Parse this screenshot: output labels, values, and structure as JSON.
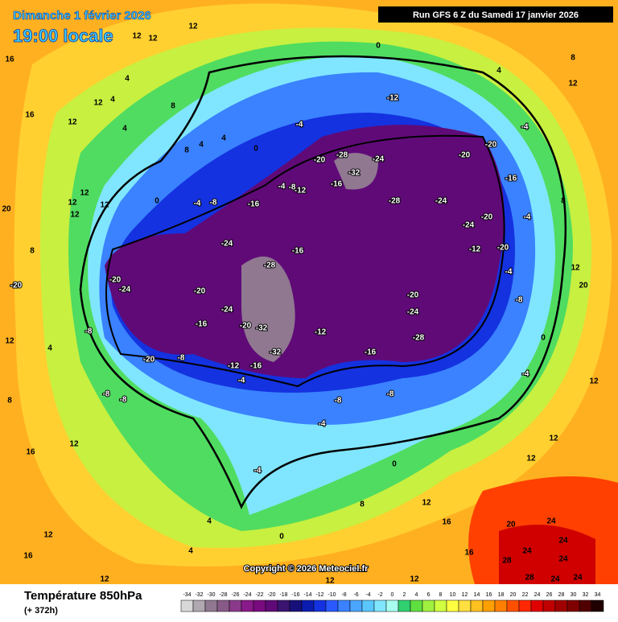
{
  "header": {
    "date": "Dimanche 1 février 2026",
    "time": "19:00 locale",
    "run": "Run GFS 6 Z du Samedi 17 janvier 2026"
  },
  "footer": {
    "title": "Température 850hPa",
    "lead": "(+ 372h)",
    "copyright": "Copyright © 2026 Meteociel.fr"
  },
  "colorbar": {
    "values": [
      -34,
      -32,
      -30,
      -28,
      -26,
      -24,
      -22,
      -20,
      -18,
      -16,
      -14,
      -12,
      -10,
      -8,
      -6,
      -4,
      -2,
      0,
      2,
      4,
      6,
      8,
      10,
      12,
      14,
      16,
      18,
      20,
      22,
      24,
      26,
      28,
      30,
      32,
      34
    ],
    "colors": [
      "#d8d8d8",
      "#b0a8b0",
      "#907890",
      "#885a88",
      "#8a3a8a",
      "#8a1a8a",
      "#7a0a80",
      "#600a78",
      "#3a1470",
      "#18107a",
      "#0c1cb0",
      "#1432e0",
      "#2a5aff",
      "#3a82ff",
      "#4aa6ff",
      "#5ac8ff",
      "#80e6ff",
      "#a8fff0",
      "#30d070",
      "#60e040",
      "#a0f040",
      "#d0ff40",
      "#ffff40",
      "#ffe040",
      "#ffc020",
      "#ffa000",
      "#ff8000",
      "#ff5000",
      "#ff2800",
      "#e00000",
      "#c00000",
      "#a00000",
      "#800000",
      "#500000",
      "#200000"
    ]
  },
  "contour_labels": [
    -20,
    -24,
    -24,
    -28,
    -16,
    -24,
    -28,
    -32,
    -28,
    -24,
    -20,
    -20,
    -24,
    -20,
    -20,
    -24,
    -28,
    -12,
    -16,
    -8,
    -8,
    -4,
    -4,
    0,
    0,
    0,
    -12,
    -4,
    -20,
    -20,
    -20,
    -24,
    -16,
    -20,
    -32,
    -32,
    -12,
    -16,
    -4,
    -8,
    -8,
    -8,
    -8,
    4,
    12,
    16,
    12,
    16,
    12,
    4,
    4,
    12,
    12,
    20,
    24,
    28,
    24,
    24,
    24,
    24,
    28,
    24,
    12,
    12,
    12,
    20,
    12,
    8,
    4,
    -4,
    12,
    12,
    12,
    16,
    16,
    12,
    12,
    4,
    4,
    4,
    8,
    8,
    4,
    4,
    0,
    0,
    12,
    12,
    8,
    20,
    12,
    12,
    -4,
    0,
    12,
    8,
    -4,
    -8,
    -20,
    -16,
    -4,
    -12,
    -20,
    -16,
    -12,
    -8,
    -4,
    -16,
    -8,
    -4,
    12,
    8,
    8,
    12,
    16,
    16
  ]
}
